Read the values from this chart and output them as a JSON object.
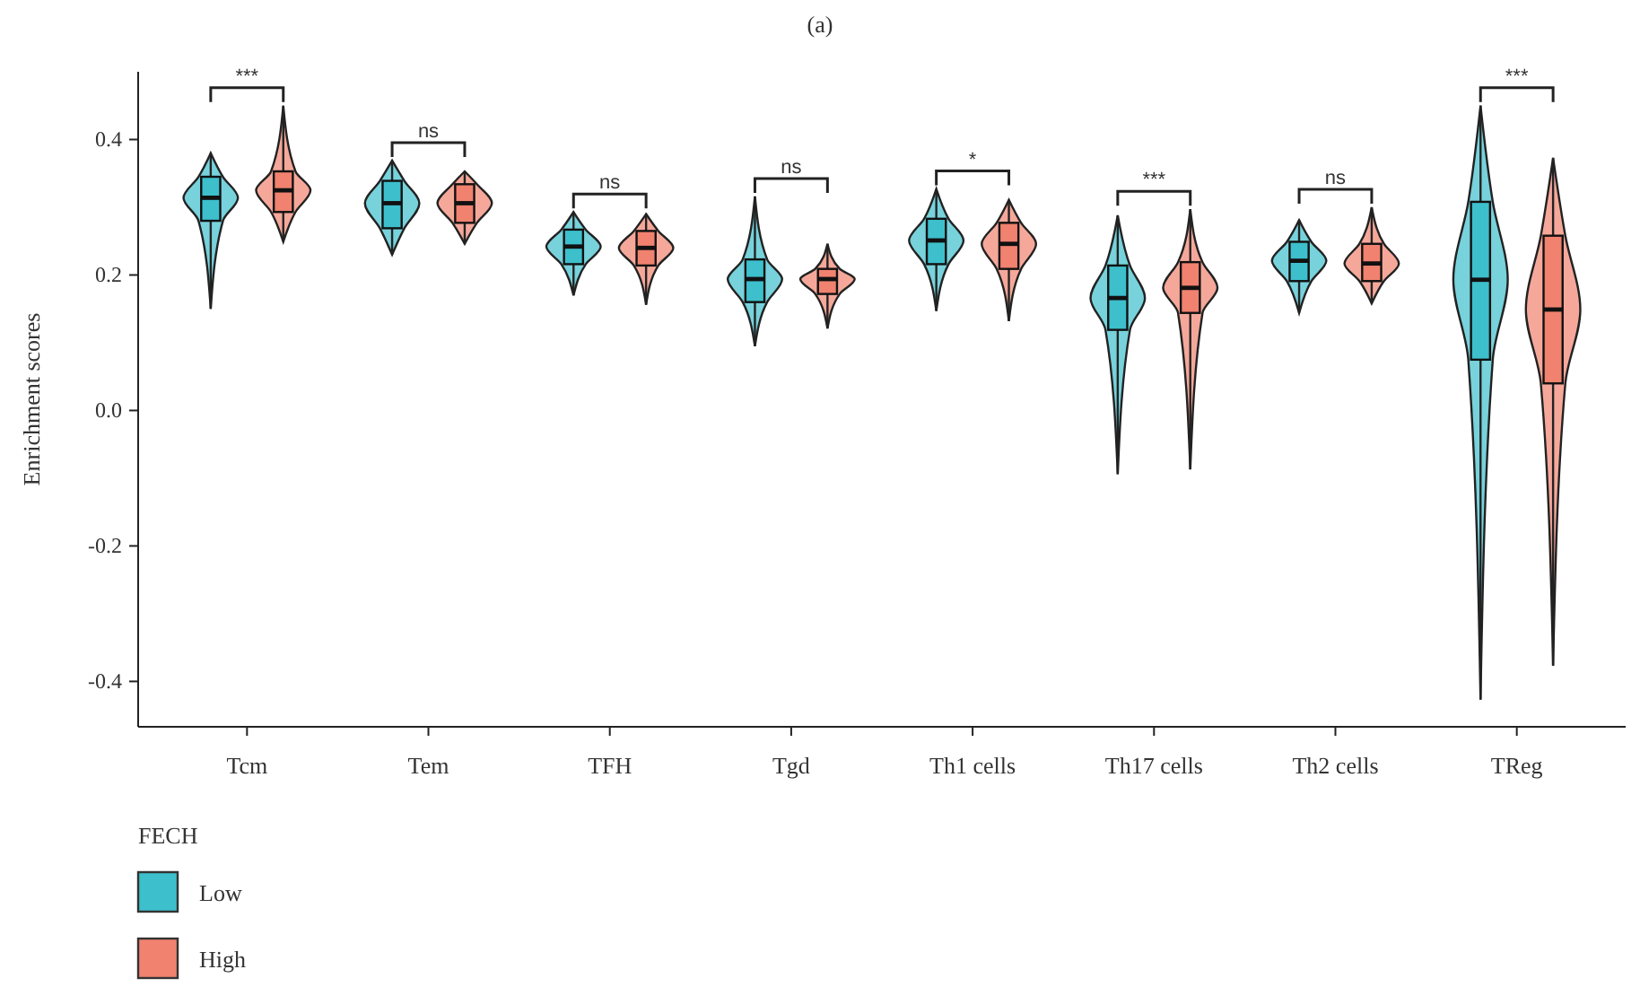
{
  "chart_data": {
    "type": "box",
    "title": "(a)",
    "ylabel": "Enrichment scores",
    "legend_title": "FECH",
    "legend": "bottom left",
    "categories": [
      "Tcm",
      "Tem",
      "TFH",
      "Tgd",
      "Th1 cells",
      "Th17 cells",
      "Th2 cells",
      "TReg"
    ],
    "ylim": [
      -0.467,
      0.5
    ],
    "yticks": [
      {
        "value": 0.4,
        "label": "0.4"
      },
      {
        "value": 0.2,
        "label": "0.2"
      },
      {
        "value": 0,
        "label": "0.0"
      },
      {
        "value": -0.2,
        "label": "-0.2"
      },
      {
        "value": -0.4,
        "label": "-0.4"
      }
    ],
    "series": [
      {
        "name": "Low",
        "color": "#3dbfcc",
        "boxes": [
          {
            "low": 0.15,
            "q1": 0.28,
            "median": 0.314,
            "q3": 0.345,
            "high": 0.38
          },
          {
            "low": 0.23,
            "q1": 0.269,
            "median": 0.306,
            "q3": 0.339,
            "high": 0.369
          },
          {
            "low": 0.17,
            "q1": 0.216,
            "median": 0.242,
            "q3": 0.267,
            "high": 0.293
          },
          {
            "low": 0.095,
            "q1": 0.16,
            "median": 0.194,
            "q3": 0.223,
            "high": 0.316
          },
          {
            "low": 0.147,
            "q1": 0.216,
            "median": 0.251,
            "q3": 0.283,
            "high": 0.327
          },
          {
            "low": -0.094,
            "q1": 0.119,
            "median": 0.166,
            "q3": 0.214,
            "high": 0.288
          },
          {
            "low": 0.144,
            "q1": 0.191,
            "median": 0.221,
            "q3": 0.249,
            "high": 0.281
          },
          {
            "low": -0.427,
            "q1": 0.075,
            "median": 0.193,
            "q3": 0.308,
            "high": 0.45
          }
        ]
      },
      {
        "name": "High",
        "color": "#f0826f",
        "boxes": [
          {
            "low": 0.249,
            "q1": 0.293,
            "median": 0.325,
            "q3": 0.353,
            "high": 0.45
          },
          {
            "low": 0.246,
            "q1": 0.277,
            "median": 0.306,
            "q3": 0.334,
            "high": 0.353
          },
          {
            "low": 0.156,
            "q1": 0.214,
            "median": 0.24,
            "q3": 0.265,
            "high": 0.29
          },
          {
            "low": 0.121,
            "q1": 0.172,
            "median": 0.194,
            "q3": 0.209,
            "high": 0.246
          },
          {
            "low": 0.132,
            "q1": 0.209,
            "median": 0.246,
            "q3": 0.277,
            "high": 0.311
          },
          {
            "low": -0.087,
            "q1": 0.144,
            "median": 0.181,
            "q3": 0.219,
            "high": 0.297
          },
          {
            "low": 0.158,
            "q1": 0.191,
            "median": 0.217,
            "q3": 0.246,
            "high": 0.3
          },
          {
            "low": -0.377,
            "q1": 0.04,
            "median": 0.149,
            "q3": 0.258,
            "high": 0.373
          }
        ]
      }
    ],
    "annotations": [
      "***",
      "ns",
      "ns",
      "ns",
      "*",
      "***",
      "ns",
      "***"
    ]
  }
}
